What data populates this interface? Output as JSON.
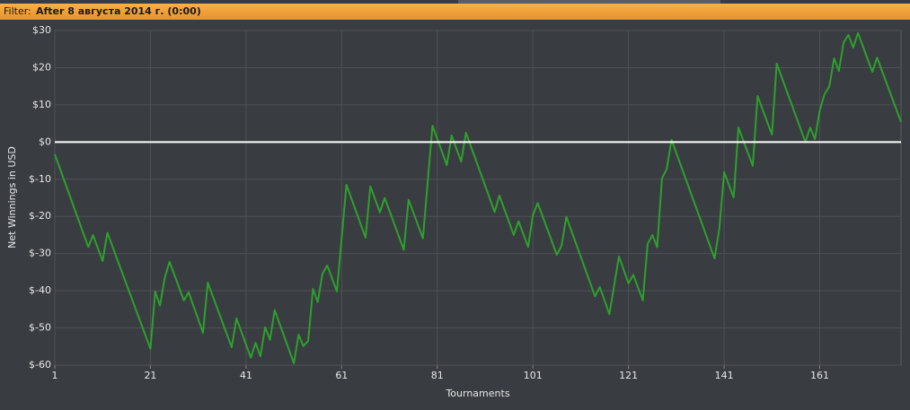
{
  "filter": {
    "label": "Filter:",
    "value": "After 8 августа 2014 г. (0:00)"
  },
  "chart_data": {
    "type": "line",
    "xlabel": "Tournaments",
    "ylabel": "Net Winnings in USD",
    "x": [
      1,
      8,
      9,
      11,
      12,
      21,
      22,
      23,
      24,
      25,
      28,
      29,
      32,
      33,
      38,
      39,
      42,
      43,
      44,
      45,
      46,
      47,
      51,
      52,
      53,
      54,
      55,
      56,
      57,
      58,
      60,
      62,
      66,
      67,
      69,
      70,
      74,
      75,
      78,
      80,
      83,
      84,
      86,
      87,
      93,
      94,
      97,
      98,
      100,
      101,
      102,
      106,
      107,
      108,
      114,
      115,
      117,
      119,
      121,
      122,
      124,
      125,
      126,
      127,
      128,
      129,
      130,
      139,
      140,
      141,
      143,
      144,
      147,
      148,
      151,
      152,
      158,
      159,
      160,
      161,
      162,
      163,
      164,
      165,
      166,
      167,
      168,
      169,
      172,
      173,
      178
    ],
    "series": [
      {
        "color": "#2ea02e",
        "values": [
          -3.3,
          -28.2,
          -25,
          -32,
          -24.4,
          -55.6,
          -40.2,
          -44,
          -36.5,
          -32.2,
          -42.6,
          -40.4,
          -51.3,
          -37.8,
          -55.2,
          -47.4,
          -58,
          -54,
          -57.6,
          -49.8,
          -53.2,
          -45.2,
          -59.5,
          -51.8,
          -54.9,
          -53.5,
          -39.5,
          -43,
          -35.4,
          -33.2,
          -40.2,
          -11.5,
          -25.7,
          -11.9,
          -18.9,
          -15,
          -29,
          -15.5,
          -25.9,
          4.4,
          -6.2,
          1.8,
          -5.3,
          2.5,
          -18.8,
          -14.4,
          -25,
          -21.3,
          -28.2,
          -19.7,
          -16.4,
          -30.3,
          -27.9,
          -20.1,
          -41.5,
          -39,
          -46.3,
          -30.8,
          -38,
          -35.7,
          -42.6,
          -27.4,
          -25,
          -28.3,
          -9.8,
          -7.2,
          0.6,
          -31.3,
          -23.3,
          -8.1,
          -14.9,
          3.9,
          -6.4,
          12.4,
          2,
          21.1,
          0,
          3.9,
          0.8,
          8.5,
          12.9,
          14.9,
          22.5,
          19.1,
          26.8,
          28.8,
          25.4,
          29.3,
          18.9,
          22.7,
          5.4
        ]
      }
    ],
    "xlim": [
      1,
      178
    ],
    "xticks": [
      1,
      21,
      41,
      61,
      81,
      101,
      121,
      141,
      161
    ],
    "ylim": [
      -60,
      30
    ],
    "yticks": [
      {
        "value": 30,
        "label": "$30"
      },
      {
        "value": 20,
        "label": "$20"
      },
      {
        "value": 10,
        "label": "$10"
      },
      {
        "value": 0,
        "label": "$0"
      },
      {
        "value": -10,
        "label": "$-10"
      },
      {
        "value": -20,
        "label": "$-20"
      },
      {
        "value": -30,
        "label": "$-30"
      },
      {
        "value": -40,
        "label": "$-40"
      },
      {
        "value": -50,
        "label": "$-50"
      },
      {
        "value": -60,
        "label": "$-60"
      }
    ],
    "grid": true
  }
}
